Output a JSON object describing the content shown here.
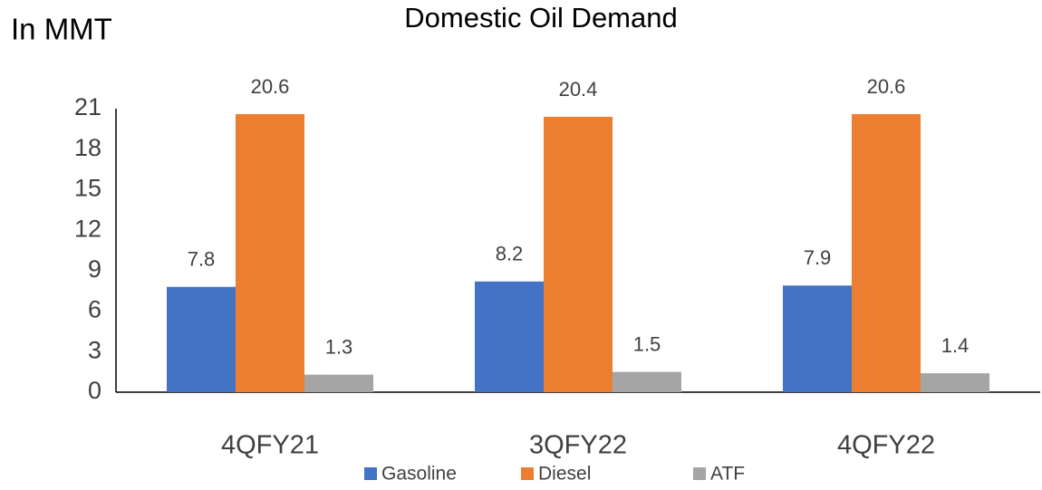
{
  "chart_data": {
    "type": "bar",
    "title": "Domestic Oil Demand",
    "y_label": "In MMT",
    "categories": [
      "4QFY21",
      "3QFY22",
      "4QFY22"
    ],
    "series": [
      {
        "name": "Gasoline",
        "color": "#4472c4",
        "values": [
          7.8,
          8.2,
          7.9
        ]
      },
      {
        "name": "Diesel",
        "color": "#ed7d31",
        "values": [
          20.6,
          20.4,
          20.6
        ]
      },
      {
        "name": "ATF",
        "color": "#a5a5a5",
        "values": [
          1.3,
          1.5,
          1.4
        ]
      }
    ],
    "ylim": [
      0,
      21
    ],
    "yticks": [
      0,
      3,
      6,
      9,
      12,
      15,
      18,
      21
    ],
    "grid": false,
    "legend": "bottom"
  }
}
